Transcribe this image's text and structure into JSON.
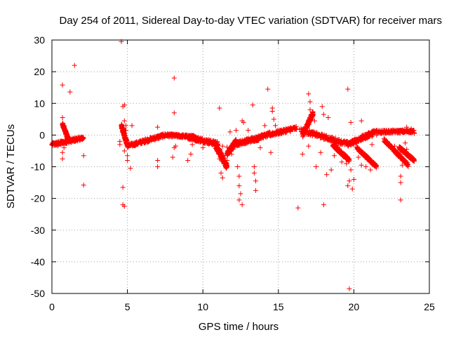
{
  "chart_data": {
    "type": "scatter",
    "title": "Day 254 of 2011, Sidereal Day-to-day VTEC variation (SDTVAR) for receiver mars",
    "xlabel": "GPS time / hours",
    "ylabel": "SDTVAR / TECUs",
    "xlim": [
      0,
      25
    ],
    "ylim": [
      -50,
      30
    ],
    "xticks": [
      "0",
      "5",
      "10",
      "15",
      "20",
      "25"
    ],
    "yticks": [
      "30",
      "20",
      "10",
      "0",
      "-10",
      "-20",
      "-30",
      "-40",
      "-50"
    ],
    "grid": true,
    "marker": "+",
    "color": "#ff0000",
    "series": [
      {
        "name": "SDTVAR",
        "points": [
          [
            0.0,
            -3.0
          ],
          [
            0.1,
            -2.6
          ],
          [
            0.2,
            -3.2
          ],
          [
            0.3,
            -2.5
          ],
          [
            0.4,
            -3.4
          ],
          [
            0.5,
            -2.8
          ],
          [
            0.6,
            -3.0
          ],
          [
            0.7,
            -2.2
          ],
          [
            0.8,
            -2.5
          ],
          [
            0.9,
            -1.8
          ],
          [
            1.0,
            -2.6
          ],
          [
            1.1,
            -2.0
          ],
          [
            1.2,
            -1.7
          ],
          [
            1.3,
            -2.3
          ],
          [
            1.4,
            -1.5
          ],
          [
            1.5,
            -2.0
          ],
          [
            1.6,
            -1.2
          ],
          [
            1.7,
            -1.6
          ],
          [
            1.8,
            -1.0
          ],
          [
            1.9,
            -1.4
          ],
          [
            2.0,
            -0.9
          ],
          [
            0.7,
            15.8
          ],
          [
            1.2,
            13.6
          ],
          [
            1.5,
            22.0
          ],
          [
            0.7,
            5.5
          ],
          [
            0.8,
            3.0
          ],
          [
            0.9,
            1.5
          ],
          [
            0.8,
            -4.0
          ],
          [
            0.7,
            -5.5
          ],
          [
            0.7,
            -7.5
          ],
          [
            2.1,
            -6.5
          ],
          [
            2.1,
            -15.8
          ],
          [
            4.6,
            29.5
          ],
          [
            4.7,
            9.0
          ],
          [
            4.8,
            9.5
          ],
          [
            4.7,
            -16.5
          ],
          [
            4.7,
            -22.0
          ],
          [
            4.8,
            -22.5
          ],
          [
            4.8,
            4.5
          ],
          [
            4.9,
            3.0
          ],
          [
            4.9,
            1.5
          ],
          [
            4.8,
            -5.0
          ],
          [
            5.0,
            -6.5
          ],
          [
            5.0,
            -8.0
          ],
          [
            5.2,
            -10.5
          ],
          [
            5.3,
            3.0
          ],
          [
            4.5,
            -3.0
          ],
          [
            4.5,
            -2.0
          ],
          [
            5.0,
            -3.5
          ],
          [
            5.3,
            -3.0
          ],
          [
            5.6,
            -2.5
          ],
          [
            5.9,
            -1.8
          ],
          [
            6.2,
            -1.2
          ],
          [
            6.5,
            -0.8
          ],
          [
            6.8,
            -0.5
          ],
          [
            7.1,
            -0.3
          ],
          [
            7.4,
            -0.2
          ],
          [
            7.7,
            0.0
          ],
          [
            8.0,
            0.1
          ],
          [
            8.3,
            -0.1
          ],
          [
            8.6,
            -0.2
          ],
          [
            8.9,
            -0.4
          ],
          [
            9.2,
            -0.6
          ],
          [
            9.5,
            -0.8
          ],
          [
            9.8,
            -1.2
          ],
          [
            10.1,
            -1.6
          ],
          [
            10.4,
            -2.0
          ],
          [
            10.7,
            -2.4
          ],
          [
            11.0,
            -2.8
          ],
          [
            11.3,
            -3.5
          ],
          [
            11.6,
            -3.8
          ],
          [
            11.9,
            -3.2
          ],
          [
            12.2,
            -2.6
          ],
          [
            12.5,
            -2.2
          ],
          [
            12.8,
            -1.8
          ],
          [
            13.1,
            -1.4
          ],
          [
            13.4,
            -1.0
          ],
          [
            13.7,
            -0.6
          ],
          [
            14.0,
            -0.2
          ],
          [
            14.3,
            0.3
          ],
          [
            14.6,
            0.8
          ],
          [
            14.9,
            1.2
          ],
          [
            15.2,
            1.6
          ],
          [
            15.5,
            2.0
          ],
          [
            15.8,
            2.4
          ],
          [
            16.1,
            2.2
          ],
          [
            16.4,
            1.8
          ],
          [
            16.7,
            1.2
          ],
          [
            17.0,
            0.8
          ],
          [
            17.3,
            0.2
          ],
          [
            17.6,
            -0.4
          ],
          [
            17.9,
            -0.8
          ],
          [
            18.2,
            -1.2
          ],
          [
            18.5,
            -1.6
          ],
          [
            18.8,
            -2.0
          ],
          [
            19.1,
            -2.2
          ],
          [
            19.4,
            -2.6
          ],
          [
            19.7,
            -3.0
          ],
          [
            20.0,
            -2.5
          ],
          [
            20.3,
            -2.0
          ],
          [
            20.6,
            -1.5
          ],
          [
            20.9,
            -1.0
          ],
          [
            21.2,
            -0.5
          ],
          [
            21.5,
            0.0
          ],
          [
            21.8,
            0.5
          ],
          [
            22.1,
            0.8
          ],
          [
            22.4,
            1.0
          ],
          [
            22.7,
            1.2
          ],
          [
            23.0,
            1.4
          ],
          [
            23.3,
            1.0
          ],
          [
            23.6,
            1.2
          ],
          [
            23.9,
            0.8
          ],
          [
            8.1,
            18.0
          ],
          [
            8.1,
            7.0
          ],
          [
            8.1,
            -4.0
          ],
          [
            8.2,
            -3.5
          ],
          [
            8.0,
            -7.0
          ],
          [
            7.0,
            -8.0
          ],
          [
            7.0,
            2.5
          ],
          [
            7.0,
            -10.0
          ],
          [
            9.0,
            -8.0
          ],
          [
            9.2,
            -6.0
          ],
          [
            9.3,
            -3.0
          ],
          [
            10.0,
            -4.0
          ],
          [
            11.1,
            8.5
          ],
          [
            11.2,
            -12.0
          ],
          [
            11.3,
            -13.5
          ],
          [
            11.1,
            -7.5
          ],
          [
            11.5,
            -10.0
          ],
          [
            11.6,
            -8.0
          ],
          [
            11.9,
            -6.0
          ],
          [
            12.0,
            -4.5
          ],
          [
            11.8,
            1.0
          ],
          [
            12.2,
            1.5
          ],
          [
            12.3,
            -10.0
          ],
          [
            12.4,
            -13.0
          ],
          [
            12.4,
            -16.0
          ],
          [
            12.5,
            -18.5
          ],
          [
            12.4,
            -20.5
          ],
          [
            12.6,
            -22.0
          ],
          [
            12.7,
            4.0
          ],
          [
            12.6,
            4.5
          ],
          [
            13.0,
            1.5
          ],
          [
            13.3,
            9.5
          ],
          [
            13.5,
            -14.5
          ],
          [
            13.5,
            -17.5
          ],
          [
            13.4,
            -12.0
          ],
          [
            13.4,
            -10.0
          ],
          [
            13.8,
            -4.0
          ],
          [
            14.1,
            3.0
          ],
          [
            14.3,
            14.5
          ],
          [
            14.4,
            1.0
          ],
          [
            14.6,
            7.5
          ],
          [
            14.6,
            8.5
          ],
          [
            14.7,
            5.0
          ],
          [
            14.5,
            -5.5
          ],
          [
            14.8,
            3.0
          ],
          [
            16.3,
            -23.0
          ],
          [
            17.0,
            13.0
          ],
          [
            17.1,
            10.5
          ],
          [
            17.2,
            6.5
          ],
          [
            17.2,
            5.0
          ],
          [
            17.1,
            8.0
          ],
          [
            17.4,
            4.5
          ],
          [
            16.6,
            -6.0
          ],
          [
            17.0,
            -3.5
          ],
          [
            17.5,
            -10.0
          ],
          [
            17.8,
            -5.5
          ],
          [
            17.9,
            9.0
          ],
          [
            18.0,
            6.5
          ],
          [
            18.2,
            -12.5
          ],
          [
            18.0,
            -22.0
          ],
          [
            18.3,
            5.5
          ],
          [
            18.5,
            -11.0
          ],
          [
            18.7,
            -6.5
          ],
          [
            19.0,
            -4.5
          ],
          [
            19.2,
            -8.5
          ],
          [
            19.6,
            14.5
          ],
          [
            19.7,
            -48.5
          ],
          [
            19.8,
            4.0
          ],
          [
            19.7,
            -14.5
          ],
          [
            19.6,
            -16.0
          ],
          [
            19.9,
            -17.0
          ],
          [
            19.8,
            -11.0
          ],
          [
            20.0,
            -14.0
          ],
          [
            19.5,
            -9.0
          ],
          [
            20.5,
            4.5
          ],
          [
            20.3,
            -7.0
          ],
          [
            20.5,
            -9.5
          ],
          [
            20.8,
            -10.0
          ],
          [
            21.1,
            -11.0
          ],
          [
            21.2,
            -3.0
          ],
          [
            22.7,
            -3.5
          ],
          [
            23.0,
            -6.0
          ],
          [
            23.2,
            -9.5
          ],
          [
            23.1,
            -13.0
          ],
          [
            23.1,
            -15.0
          ],
          [
            23.1,
            -20.5
          ],
          [
            23.4,
            -2.5
          ],
          [
            23.5,
            -4.5
          ],
          [
            23.7,
            -6.5
          ],
          [
            23.9,
            -8.0
          ],
          [
            24.0,
            0.5
          ],
          [
            23.8,
            2.0
          ],
          [
            23.7,
            1.5
          ],
          [
            23.5,
            2.5
          ]
        ],
        "segments": [
          {
            "x": [
              0.0,
              2.1
            ],
            "y": [
              -3.0,
              -0.9
            ],
            "spread": 1.2
          },
          {
            "x": [
              0.7,
              1.1
            ],
            "y": [
              3.5,
              -1.5
            ],
            "spread": 1.0
          },
          {
            "x": [
              4.6,
              5.0
            ],
            "y": [
              3.0,
              -3.0
            ],
            "spread": 1.5
          },
          {
            "x": [
              5.0,
              7.5
            ],
            "y": [
              -3.5,
              0.0
            ],
            "spread": 1.2
          },
          {
            "x": [
              7.5,
              9.5
            ],
            "y": [
              0.0,
              -0.6
            ],
            "spread": 1.0
          },
          {
            "x": [
              9.0,
              11.0
            ],
            "y": [
              -0.6,
              -2.8
            ],
            "spread": 1.5
          },
          {
            "x": [
              10.8,
              11.6
            ],
            "y": [
              -2.8,
              -10.0
            ],
            "spread": 2.0
          },
          {
            "x": [
              11.6,
              12.2
            ],
            "y": [
              -6.0,
              -2.0
            ],
            "spread": 1.5
          },
          {
            "x": [
              12.0,
              13.8
            ],
            "y": [
              -3.0,
              -0.8
            ],
            "spread": 1.5
          },
          {
            "x": [
              13.6,
              16.2
            ],
            "y": [
              -0.8,
              2.2
            ],
            "spread": 1.3
          },
          {
            "x": [
              16.6,
              17.3
            ],
            "y": [
              0.0,
              7.0
            ],
            "spread": 1.5
          },
          {
            "x": [
              16.5,
              19.6
            ],
            "y": [
              1.5,
              -2.8
            ],
            "spread": 1.5
          },
          {
            "x": [
              18.6,
              19.7
            ],
            "y": [
              -3.0,
              -8.0
            ],
            "spread": 1.2
          },
          {
            "x": [
              19.6,
              21.4
            ],
            "y": [
              -3.0,
              1.0
            ],
            "spread": 1.5
          },
          {
            "x": [
              20.2,
              21.5
            ],
            "y": [
              -4.0,
              -10.0
            ],
            "spread": 1.0
          },
          {
            "x": [
              21.4,
              24.0
            ],
            "y": [
              1.0,
              1.2
            ],
            "spread": 1.0
          },
          {
            "x": [
              22.0,
              23.6
            ],
            "y": [
              -1.5,
              -9.5
            ],
            "spread": 1.0
          },
          {
            "x": [
              23.0,
              24.0
            ],
            "y": [
              -4.0,
              -8.0
            ],
            "spread": 1.0
          }
        ]
      }
    ]
  }
}
